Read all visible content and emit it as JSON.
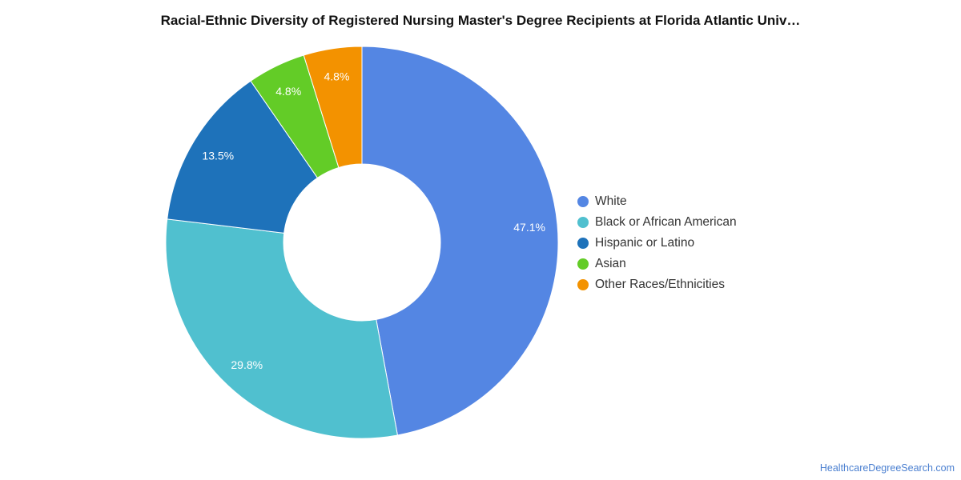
{
  "chart_data": {
    "type": "pie",
    "title": "Racial-Ethnic Diversity of Registered Nursing Master's Degree Recipients at Florida Atlantic Univ…",
    "categories": [
      "White",
      "Black or African American",
      "Hispanic or Latino",
      "Asian",
      "Other Races/Ethnicities"
    ],
    "values": [
      47.1,
      29.8,
      13.5,
      4.8,
      4.8
    ],
    "value_labels": [
      "47.1%",
      "29.8%",
      "13.5%",
      "4.8%",
      "4.8%"
    ],
    "colors": [
      "#5486e3",
      "#50c0cf",
      "#1e72ba",
      "#63cc27",
      "#f39200"
    ],
    "donut": true,
    "legend_position": "right"
  },
  "source": "HealthcareDegreeSearch.com"
}
